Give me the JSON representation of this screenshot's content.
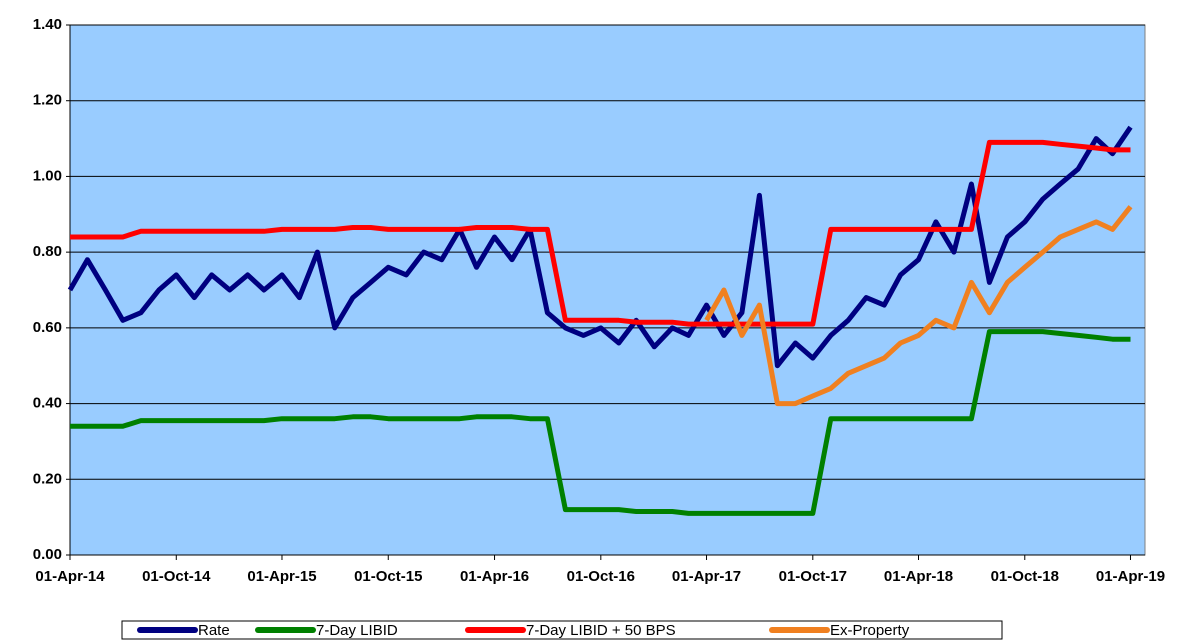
{
  "chart_data": {
    "type": "line",
    "x": [
      "2014-04-01",
      "2014-05-01",
      "2014-06-01",
      "2014-07-01",
      "2014-08-01",
      "2014-09-01",
      "2014-10-01",
      "2014-11-01",
      "2014-12-01",
      "2015-01-01",
      "2015-02-01",
      "2015-03-01",
      "2015-04-01",
      "2015-05-01",
      "2015-06-01",
      "2015-07-01",
      "2015-08-01",
      "2015-09-01",
      "2015-10-01",
      "2015-11-01",
      "2015-12-01",
      "2016-01-01",
      "2016-02-01",
      "2016-03-01",
      "2016-04-01",
      "2016-05-01",
      "2016-06-01",
      "2016-07-01",
      "2016-08-01",
      "2016-09-01",
      "2016-10-01",
      "2016-11-01",
      "2016-12-01",
      "2017-01-01",
      "2017-02-01",
      "2017-03-01",
      "2017-04-01",
      "2017-05-01",
      "2017-06-01",
      "2017-07-01",
      "2017-08-01",
      "2017-09-01",
      "2017-10-01",
      "2017-11-01",
      "2017-12-01",
      "2018-01-01",
      "2018-02-01",
      "2018-03-01",
      "2018-04-01",
      "2018-05-01",
      "2018-06-01",
      "2018-07-01",
      "2018-08-01",
      "2018-09-01",
      "2018-10-01",
      "2018-11-01",
      "2018-12-01",
      "2019-01-01",
      "2019-02-01",
      "2019-03-01",
      "2019-04-01"
    ],
    "series": [
      {
        "name": "Rate",
        "color": "#000080",
        "values": [
          0.7,
          0.78,
          0.7,
          0.62,
          0.64,
          0.7,
          0.74,
          0.68,
          0.74,
          0.7,
          0.74,
          0.7,
          0.74,
          0.68,
          0.8,
          0.6,
          0.68,
          0.72,
          0.76,
          0.74,
          0.8,
          0.78,
          0.86,
          0.76,
          0.84,
          0.78,
          0.86,
          0.64,
          0.6,
          0.58,
          0.6,
          0.56,
          0.62,
          0.55,
          0.6,
          0.58,
          0.66,
          0.58,
          0.64,
          0.95,
          0.5,
          0.56,
          0.52,
          0.58,
          0.62,
          0.68,
          0.66,
          0.74,
          0.78,
          0.88,
          0.8,
          0.98,
          0.72,
          0.84,
          0.88,
          0.94,
          0.98,
          1.02,
          1.1,
          1.06,
          1.13
        ]
      },
      {
        "name": "7-Day LIBID",
        "color": "#008000",
        "values": [
          0.34,
          0.34,
          0.34,
          0.34,
          0.355,
          0.355,
          0.355,
          0.355,
          0.355,
          0.355,
          0.355,
          0.355,
          0.36,
          0.36,
          0.36,
          0.36,
          0.365,
          0.365,
          0.36,
          0.36,
          0.36,
          0.36,
          0.36,
          0.365,
          0.365,
          0.365,
          0.36,
          0.36,
          0.12,
          0.12,
          0.12,
          0.12,
          0.115,
          0.115,
          0.115,
          0.11,
          0.11,
          0.11,
          0.11,
          0.11,
          0.11,
          0.11,
          0.11,
          0.36,
          0.36,
          0.36,
          0.36,
          0.36,
          0.36,
          0.36,
          0.36,
          0.36,
          0.59,
          0.59,
          0.59,
          0.59,
          0.585,
          0.58,
          0.575,
          0.57,
          0.57
        ]
      },
      {
        "name": "7-Day LIBID + 50 BPS",
        "color": "#ff0000",
        "values": [
          0.84,
          0.84,
          0.84,
          0.84,
          0.855,
          0.855,
          0.855,
          0.855,
          0.855,
          0.855,
          0.855,
          0.855,
          0.86,
          0.86,
          0.86,
          0.86,
          0.865,
          0.865,
          0.86,
          0.86,
          0.86,
          0.86,
          0.86,
          0.865,
          0.865,
          0.865,
          0.86,
          0.86,
          0.62,
          0.62,
          0.62,
          0.62,
          0.615,
          0.615,
          0.615,
          0.61,
          0.61,
          0.61,
          0.61,
          0.61,
          0.61,
          0.61,
          0.61,
          0.86,
          0.86,
          0.86,
          0.86,
          0.86,
          0.86,
          0.86,
          0.86,
          0.86,
          1.09,
          1.09,
          1.09,
          1.09,
          1.085,
          1.08,
          1.075,
          1.07,
          1.07
        ]
      },
      {
        "name": "Ex-Property",
        "color": "#f08020",
        "values": [
          null,
          null,
          null,
          null,
          null,
          null,
          null,
          null,
          null,
          null,
          null,
          null,
          null,
          null,
          null,
          null,
          null,
          null,
          null,
          null,
          null,
          null,
          null,
          null,
          null,
          null,
          null,
          null,
          null,
          null,
          null,
          null,
          null,
          null,
          null,
          null,
          0.62,
          0.7,
          0.58,
          0.66,
          0.4,
          0.4,
          0.42,
          0.44,
          0.48,
          0.5,
          0.52,
          0.56,
          0.58,
          0.62,
          0.6,
          0.72,
          0.64,
          0.72,
          0.76,
          0.8,
          0.84,
          0.86,
          0.88,
          0.86,
          0.92
        ]
      }
    ],
    "xlim": [
      "2014-04-01",
      "2019-04-26"
    ],
    "xticks": [
      {
        "value": "2014-04-01",
        "label": "01-Apr-14"
      },
      {
        "value": "2014-10-01",
        "label": "01-Oct-14"
      },
      {
        "value": "2015-04-01",
        "label": "01-Apr-15"
      },
      {
        "value": "2015-10-01",
        "label": "01-Oct-15"
      },
      {
        "value": "2016-04-01",
        "label": "01-Apr-16"
      },
      {
        "value": "2016-10-01",
        "label": "01-Oct-16"
      },
      {
        "value": "2017-04-01",
        "label": "01-Apr-17"
      },
      {
        "value": "2017-10-01",
        "label": "01-Oct-17"
      },
      {
        "value": "2018-04-01",
        "label": "01-Apr-18"
      },
      {
        "value": "2018-10-01",
        "label": "01-Oct-18"
      },
      {
        "value": "2019-04-01",
        "label": "01-Apr-19"
      }
    ],
    "ylim": [
      0,
      1.4
    ],
    "yticks": [
      {
        "value": 0,
        "label": "0.00"
      },
      {
        "value": 0.2,
        "label": "0.20"
      },
      {
        "value": 0.4,
        "label": "0.40"
      },
      {
        "value": 0.6,
        "label": "0.60"
      },
      {
        "value": 0.8,
        "label": "0.80"
      },
      {
        "value": 1.0,
        "label": "1.00"
      },
      {
        "value": 1.2,
        "label": "1.20"
      },
      {
        "value": 1.4,
        "label": "1.40"
      }
    ],
    "grid": true,
    "legend": "bottom"
  }
}
